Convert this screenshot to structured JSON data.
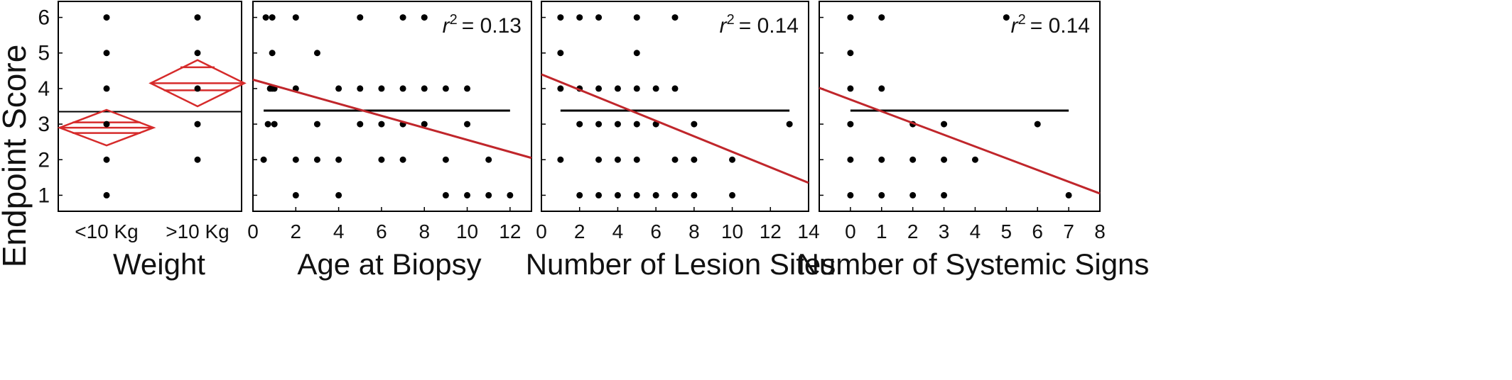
{
  "ylabel": "Endpoint Score",
  "chart_data": [
    {
      "type": "scatter",
      "id": "weight",
      "xlabel": "Weight",
      "categories": [
        "<10 Kg",
        ">10 Kg"
      ],
      "ylim": [
        0.55,
        6.45
      ],
      "yticks": [
        1,
        2,
        3,
        4,
        5,
        6
      ],
      "grand_mean": 3.35,
      "series": [
        {
          "category": "<10 Kg",
          "values": [
            1,
            2,
            3,
            4,
            5,
            6
          ]
        },
        {
          "category": ">10 Kg",
          "values": [
            2,
            3,
            4,
            5,
            6
          ]
        }
      ],
      "group_means": [
        {
          "category": "<10 Kg",
          "mean": 2.9,
          "ci": [
            2.4,
            3.4
          ],
          "inner": [
            2.75,
            3.05
          ]
        },
        {
          "category": ">10 Kg",
          "mean": 4.15,
          "ci": [
            3.5,
            4.8
          ],
          "inner": [
            3.95,
            4.6
          ]
        }
      ],
      "diamond_color": "#d62b2b"
    },
    {
      "type": "scatter",
      "id": "age",
      "xlabel": "Age at Biopsy",
      "r2_label": "r",
      "r2_sup": "2",
      "r2_value": "= 0.13",
      "xlim": [
        0,
        13
      ],
      "xticks": [
        0,
        2,
        4,
        6,
        8,
        10,
        12
      ],
      "ylim": [
        0.55,
        6.45
      ],
      "mean_line": {
        "y": 3.38,
        "x": [
          0.5,
          12
        ]
      },
      "fit_line": {
        "x": [
          0,
          13
        ],
        "y": [
          4.25,
          2.05
        ]
      },
      "fit_color": "#c0262b",
      "points": [
        [
          0.6,
          6
        ],
        [
          0.9,
          6
        ],
        [
          2,
          6
        ],
        [
          5,
          6
        ],
        [
          7,
          6
        ],
        [
          8,
          6
        ],
        [
          0.9,
          5
        ],
        [
          3,
          5
        ],
        [
          0.8,
          4
        ],
        [
          0.9,
          4
        ],
        [
          1,
          4
        ],
        [
          2,
          4
        ],
        [
          4,
          4
        ],
        [
          5,
          4
        ],
        [
          6,
          4
        ],
        [
          7,
          4
        ],
        [
          8,
          4
        ],
        [
          9,
          4
        ],
        [
          10,
          4
        ],
        [
          0.7,
          3
        ],
        [
          1,
          3
        ],
        [
          3,
          3
        ],
        [
          5,
          3
        ],
        [
          6,
          3
        ],
        [
          7,
          3
        ],
        [
          8,
          3
        ],
        [
          10,
          3
        ],
        [
          0.5,
          2
        ],
        [
          2,
          2
        ],
        [
          3,
          2
        ],
        [
          4,
          2
        ],
        [
          6,
          2
        ],
        [
          7,
          2
        ],
        [
          9,
          2
        ],
        [
          11,
          2
        ],
        [
          2,
          1
        ],
        [
          4,
          1
        ],
        [
          9,
          1
        ],
        [
          10,
          1
        ],
        [
          11,
          1
        ],
        [
          12,
          1
        ]
      ]
    },
    {
      "type": "scatter",
      "id": "lesion",
      "xlabel": "Number of Lesion Sites",
      "r2_label": "r",
      "r2_sup": "2",
      "r2_value": "= 0.14",
      "xlim": [
        0,
        14
      ],
      "xticks": [
        0,
        2,
        4,
        6,
        8,
        10,
        12,
        14
      ],
      "ylim": [
        0.55,
        6.45
      ],
      "mean_line": {
        "y": 3.38,
        "x": [
          1,
          13
        ]
      },
      "fit_line": {
        "x": [
          0,
          14
        ],
        "y": [
          4.4,
          1.35
        ]
      },
      "fit_color": "#c0262b",
      "points": [
        [
          1,
          6
        ],
        [
          2,
          6
        ],
        [
          3,
          6
        ],
        [
          5,
          6
        ],
        [
          7,
          6
        ],
        [
          1,
          5
        ],
        [
          5,
          5
        ],
        [
          1,
          4
        ],
        [
          2,
          4
        ],
        [
          3,
          4
        ],
        [
          4,
          4
        ],
        [
          5,
          4
        ],
        [
          6,
          4
        ],
        [
          7,
          4
        ],
        [
          2,
          3
        ],
        [
          3,
          3
        ],
        [
          4,
          3
        ],
        [
          5,
          3
        ],
        [
          6,
          3
        ],
        [
          8,
          3
        ],
        [
          13,
          3
        ],
        [
          1,
          2
        ],
        [
          3,
          2
        ],
        [
          4,
          2
        ],
        [
          5,
          2
        ],
        [
          7,
          2
        ],
        [
          8,
          2
        ],
        [
          10,
          2
        ],
        [
          2,
          1
        ],
        [
          3,
          1
        ],
        [
          4,
          1
        ],
        [
          5,
          1
        ],
        [
          6,
          1
        ],
        [
          7,
          1
        ],
        [
          8,
          1
        ],
        [
          10,
          1
        ]
      ]
    },
    {
      "type": "scatter",
      "id": "systemic",
      "xlabel": "Number of Systemic Signs",
      "r2_label": "r",
      "r2_sup": "2",
      "r2_value": "= 0.14",
      "xlim": [
        -1,
        8
      ],
      "xticks": [
        0,
        1,
        2,
        3,
        4,
        5,
        6,
        7,
        8
      ],
      "ylim": [
        0.55,
        6.45
      ],
      "mean_line": {
        "y": 3.38,
        "x": [
          0,
          7
        ]
      },
      "fit_line": {
        "x": [
          -1,
          8
        ],
        "y": [
          4.02,
          1.05
        ]
      },
      "fit_color": "#c0262b",
      "points": [
        [
          0,
          6
        ],
        [
          1,
          6
        ],
        [
          5,
          6
        ],
        [
          0,
          5
        ],
        [
          0,
          4
        ],
        [
          1,
          4
        ],
        [
          0,
          3
        ],
        [
          2,
          3
        ],
        [
          3,
          3
        ],
        [
          6,
          3
        ],
        [
          0,
          2
        ],
        [
          1,
          2
        ],
        [
          2,
          2
        ],
        [
          3,
          2
        ],
        [
          4,
          2
        ],
        [
          0,
          1
        ],
        [
          1,
          1
        ],
        [
          2,
          1
        ],
        [
          3,
          1
        ],
        [
          7,
          1
        ]
      ]
    }
  ]
}
